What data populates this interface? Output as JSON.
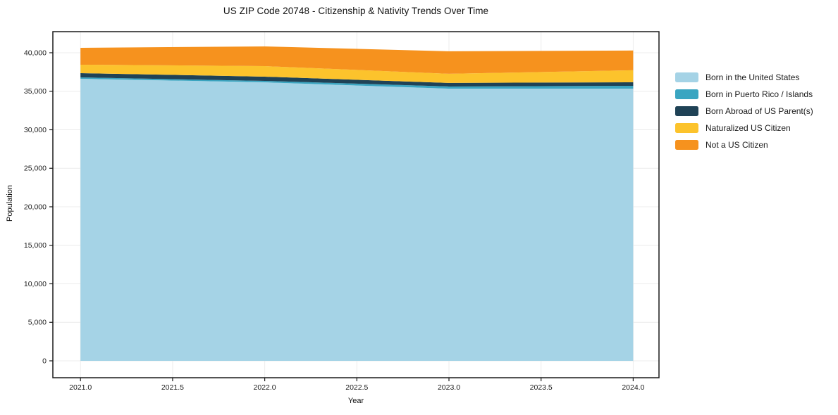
{
  "title": "US ZIP Code 20748 - Citizenship & Nativity Trends Over Time",
  "chart_data": {
    "type": "area",
    "stacked": true,
    "title": "US ZIP Code 20748 - Citizenship & Nativity Trends Over Time",
    "xlabel": "Year",
    "ylabel": "Population",
    "x": [
      2021,
      2022,
      2023,
      2024
    ],
    "series": [
      {
        "name": "Born in the United States",
        "color": "#a5d3e6",
        "values": [
          36620,
          36160,
          35340,
          35340
        ]
      },
      {
        "name": "Born in Puerto Rico / Islands",
        "color": "#3aa5c1",
        "values": [
          180,
          185,
          280,
          370
        ]
      },
      {
        "name": "Born Abroad of US Parent(s)",
        "color": "#1f4256",
        "values": [
          550,
          550,
          460,
          460
        ]
      },
      {
        "name": "Naturalized US Citizen",
        "color": "#fcc32c",
        "values": [
          1100,
          1370,
          1190,
          1560
        ]
      },
      {
        "name": "Not a US Citizen",
        "color": "#f6921e",
        "values": [
          2190,
          2560,
          2920,
          2560
        ]
      }
    ],
    "totals": [
      40640,
      40825,
      40190,
      40290
    ],
    "xticks": [
      2021.0,
      2021.5,
      2022.0,
      2022.5,
      2023.0,
      2023.5,
      2024.0
    ],
    "xtick_labels": [
      "2021.0",
      "2021.5",
      "2022.0",
      "2022.5",
      "2023.0",
      "2023.5",
      "2024.0"
    ],
    "yticks": [
      0,
      5000,
      10000,
      15000,
      20000,
      25000,
      30000,
      35000,
      40000
    ],
    "ytick_labels": [
      "0",
      "5,000",
      "10,000",
      "15,000",
      "20,000",
      "25,000",
      "30,000",
      "35,000",
      "40,000"
    ],
    "xlim": [
      2020.85,
      2024.14
    ],
    "ylim": [
      -2192,
      42738
    ],
    "grid": true,
    "legend_position": "right-outside"
  },
  "colors": {
    "background": "#ffffff",
    "grid": "#ececec",
    "spine": "#1a1a1a",
    "tick_text": "#1a1a1a"
  }
}
